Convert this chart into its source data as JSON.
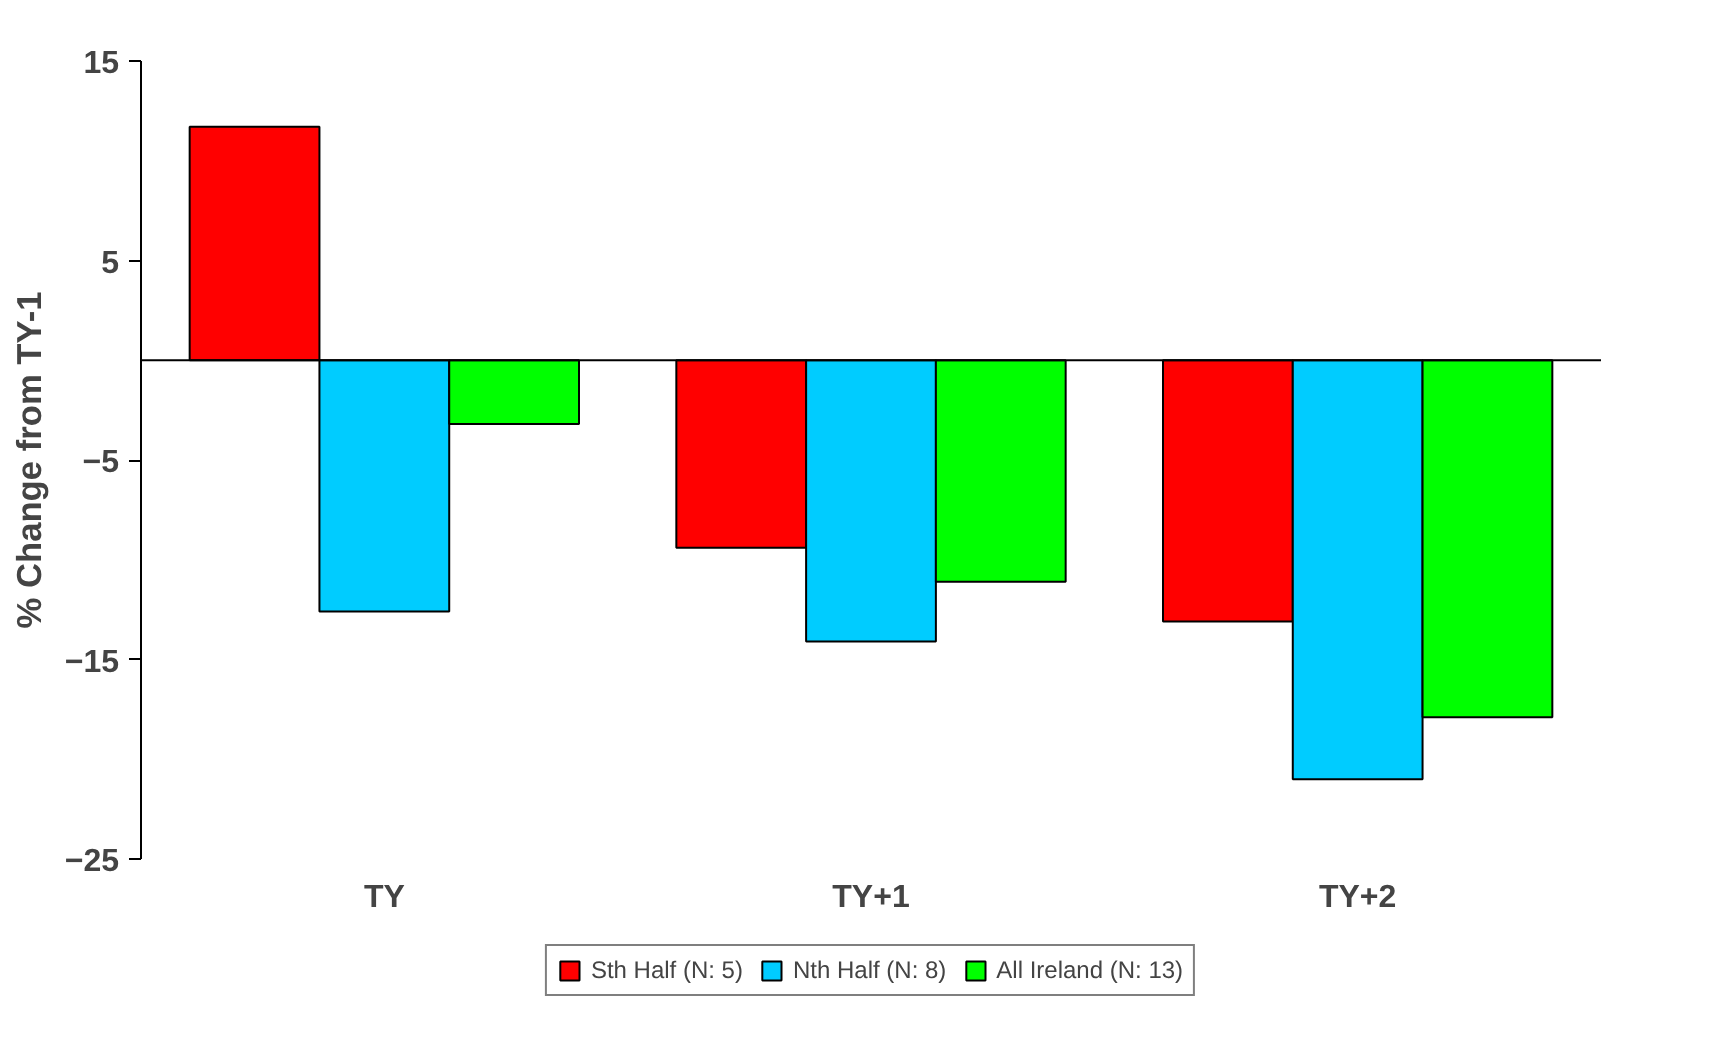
{
  "chart_data": {
    "type": "bar",
    "ylabel": "% Change from TY-1",
    "categories": [
      "TY",
      "TY+1",
      "TY+2"
    ],
    "series": [
      {
        "name": "Sth Half (N: 5)",
        "color": "#ff0000",
        "values": [
          11.7,
          -9.4,
          -13.1
        ]
      },
      {
        "name": "Nth Half (N: 8)",
        "color": "#00ccff",
        "values": [
          -12.6,
          -14.1,
          -21.0
        ]
      },
      {
        "name": "All Ireland (N: 13)",
        "color": "#00ff00",
        "values": [
          -3.2,
          -11.1,
          -17.9
        ]
      }
    ],
    "ylim": [
      -25,
      15
    ],
    "yticks": [
      -25,
      -15,
      -5,
      5,
      15
    ],
    "grid": false,
    "legend": "bottom"
  }
}
